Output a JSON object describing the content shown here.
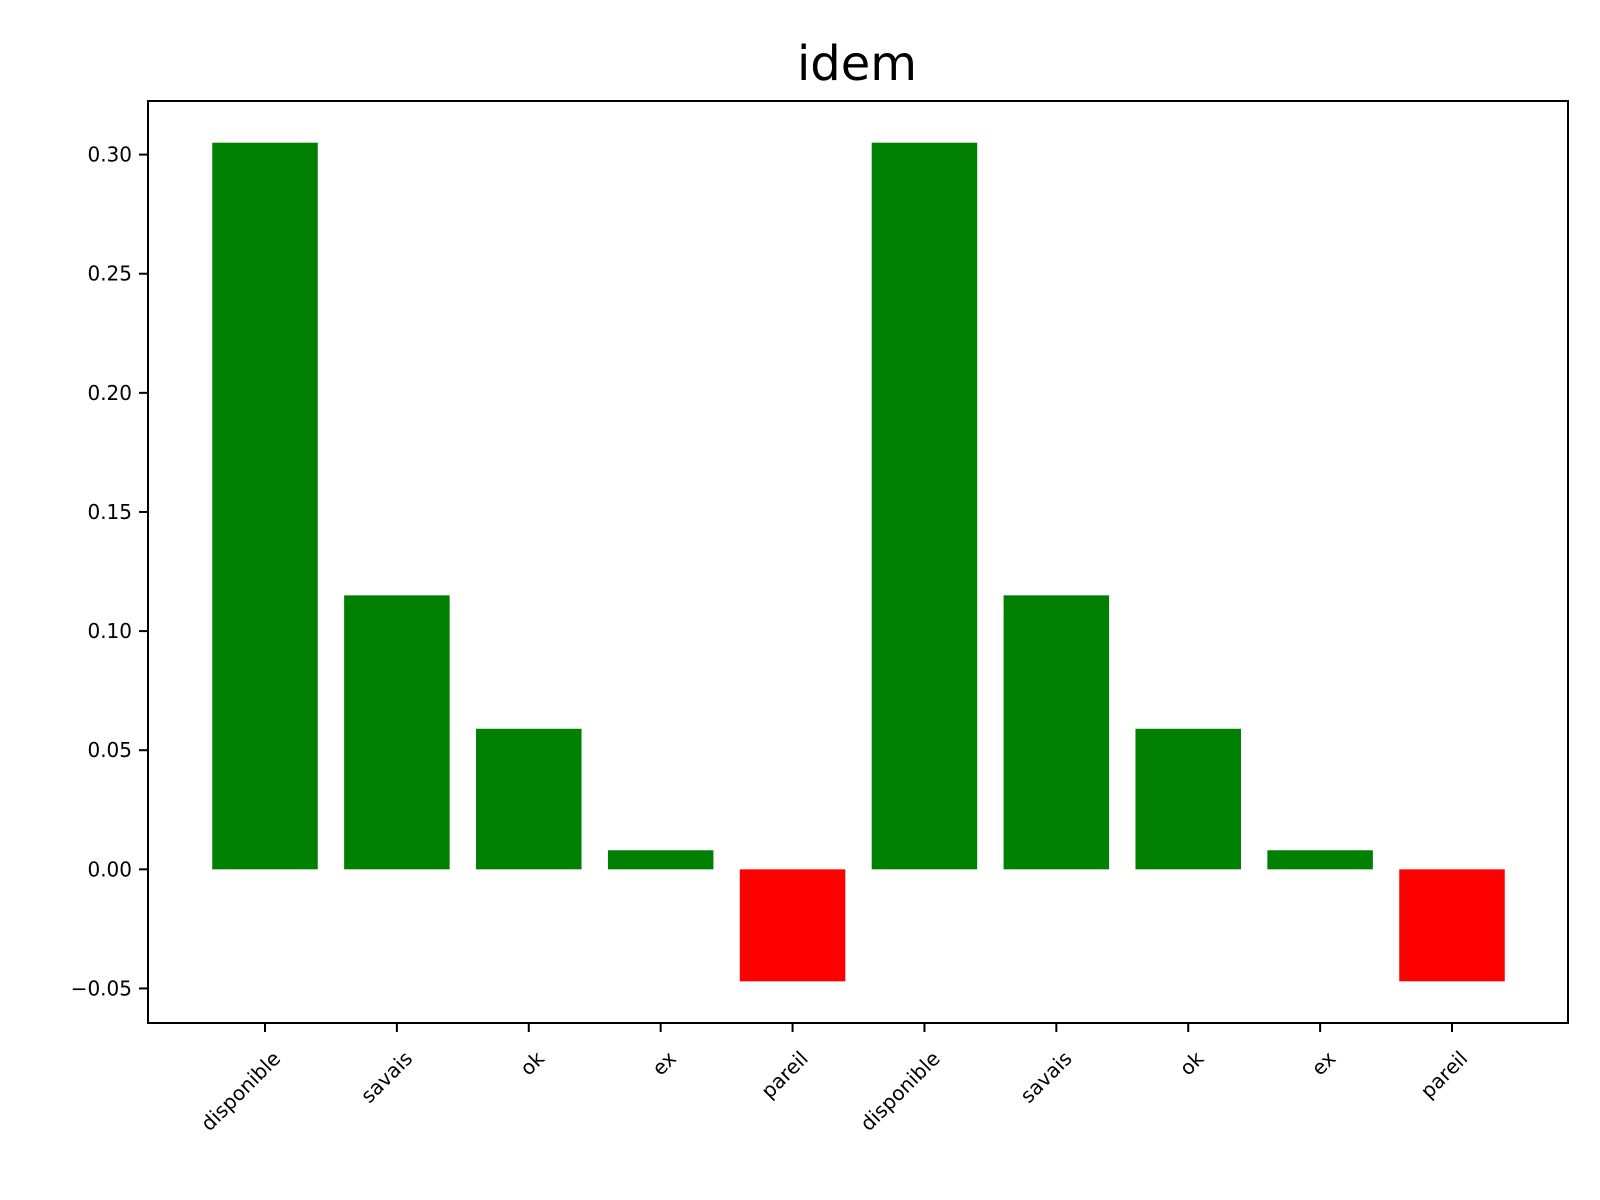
{
  "chart_data": {
    "type": "bar",
    "title": "idem",
    "xlabel": "",
    "ylabel": "",
    "categories": [
      "disponible",
      "savais",
      "ok",
      "ex",
      "pareil",
      "disponible",
      "savais",
      "ok",
      "ex",
      "pareil"
    ],
    "values": [
      0.305,
      0.115,
      0.059,
      0.008,
      -0.047,
      0.305,
      0.115,
      0.059,
      0.008,
      -0.047
    ],
    "ylim": [
      -0.0645,
      0.3225
    ],
    "yticks": [
      -0.05,
      0.0,
      0.05,
      0.1,
      0.15,
      0.2,
      0.25,
      0.3
    ],
    "ytick_labels": [
      "−0.05",
      "0.00",
      "0.05",
      "0.10",
      "0.15",
      "0.20",
      "0.25",
      "0.30"
    ],
    "colors": {
      "positive": "#008000",
      "negative": "#ff0000"
    },
    "grid": false,
    "legend": "none"
  }
}
